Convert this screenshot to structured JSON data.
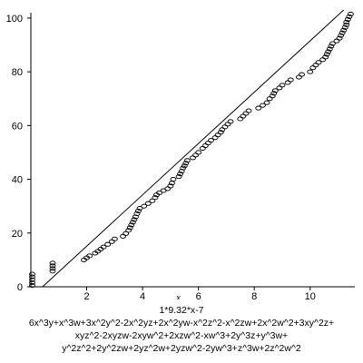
{
  "chart_data": {
    "type": "scatter",
    "title": "",
    "xlabel": "x",
    "ylabel": "",
    "xlim": [
      0,
      11.6
    ],
    "ylim": [
      0,
      102
    ],
    "grid": false,
    "x_ticks": [
      "2",
      "4",
      "6",
      "8",
      "10"
    ],
    "y_ticks": [
      "0",
      "20",
      "40",
      "60",
      "80",
      "100"
    ],
    "reference_line": {
      "x": [
        0,
        11.2
      ],
      "y": [
        -4,
        103
      ]
    },
    "series": [
      {
        "points": [
          [
            0.05,
            0.5
          ],
          [
            0.05,
            1.5
          ],
          [
            0.05,
            2.6
          ],
          [
            0.05,
            3.7
          ],
          [
            0.05,
            4.7
          ],
          [
            0.78,
            5.8
          ],
          [
            0.78,
            6.8
          ],
          [
            0.78,
            7.8
          ],
          [
            0.78,
            8.8
          ],
          [
            1.9,
            10.0
          ],
          [
            2.0,
            10.8
          ],
          [
            2.1,
            11.5
          ],
          [
            2.3,
            12.5
          ],
          [
            2.4,
            13.2
          ],
          [
            2.5,
            14.0
          ],
          [
            2.6,
            14.8
          ],
          [
            2.75,
            15.8
          ],
          [
            2.9,
            16.8
          ],
          [
            3.0,
            17.8
          ],
          [
            3.3,
            18.8
          ],
          [
            3.4,
            19.8
          ],
          [
            3.5,
            21.0
          ],
          [
            3.55,
            22.0
          ],
          [
            3.6,
            23.0
          ],
          [
            3.65,
            24.0
          ],
          [
            3.7,
            25.0
          ],
          [
            3.75,
            26.0
          ],
          [
            3.8,
            27.2
          ],
          [
            3.85,
            28.2
          ],
          [
            3.9,
            29.2
          ],
          [
            4.05,
            30.0
          ],
          [
            4.2,
            31.0
          ],
          [
            4.35,
            32.0
          ],
          [
            4.45,
            33.2
          ],
          [
            4.5,
            34.2
          ],
          [
            4.6,
            35.0
          ],
          [
            4.75,
            35.8
          ],
          [
            4.9,
            36.5
          ],
          [
            5.0,
            37.5
          ],
          [
            5.05,
            38.6
          ],
          [
            5.1,
            40.0
          ],
          [
            5.3,
            41.0
          ],
          [
            5.35,
            42.0
          ],
          [
            5.4,
            43.0
          ],
          [
            5.45,
            44.2
          ],
          [
            5.5,
            45.0
          ],
          [
            5.55,
            46.0
          ],
          [
            5.6,
            47.0
          ],
          [
            5.8,
            48.0
          ],
          [
            5.9,
            49.0
          ],
          [
            6.0,
            50.0
          ],
          [
            6.15,
            51.5
          ],
          [
            6.25,
            52.5
          ],
          [
            6.35,
            53.5
          ],
          [
            6.45,
            54.5
          ],
          [
            6.6,
            55.5
          ],
          [
            6.7,
            56.5
          ],
          [
            6.8,
            57.5
          ],
          [
            6.85,
            58.5
          ],
          [
            6.95,
            59.5
          ],
          [
            7.05,
            60.5
          ],
          [
            7.15,
            61.5
          ],
          [
            7.5,
            62.5
          ],
          [
            7.6,
            63.5
          ],
          [
            7.7,
            64.5
          ],
          [
            7.8,
            65.5
          ],
          [
            8.15,
            66.5
          ],
          [
            8.3,
            67.5
          ],
          [
            8.45,
            68.5
          ],
          [
            8.55,
            70.0
          ],
          [
            8.65,
            71.0
          ],
          [
            8.7,
            72.0
          ],
          [
            8.75,
            73.0
          ],
          [
            8.9,
            74.0
          ],
          [
            9.0,
            75.0
          ],
          [
            9.2,
            76.0
          ],
          [
            9.3,
            77.0
          ],
          [
            9.6,
            78.0
          ],
          [
            9.7,
            79.0
          ],
          [
            10.0,
            80.0
          ],
          [
            10.1,
            81.5
          ],
          [
            10.2,
            82.5
          ],
          [
            10.3,
            83.5
          ],
          [
            10.45,
            84.5
          ],
          [
            10.55,
            85.5
          ],
          [
            10.6,
            86.5
          ],
          [
            10.65,
            87.5
          ],
          [
            10.7,
            88.5
          ],
          [
            10.75,
            89.5
          ],
          [
            10.8,
            90.5
          ],
          [
            10.95,
            91.5
          ],
          [
            11.05,
            92.5
          ],
          [
            11.1,
            93.5
          ],
          [
            11.15,
            94.5
          ],
          [
            11.2,
            95.5
          ],
          [
            11.25,
            96.5
          ],
          [
            11.3,
            97.5
          ],
          [
            11.3,
            98.5
          ],
          [
            11.35,
            99.5
          ],
          [
            11.4,
            100.5
          ],
          [
            11.45,
            101.5
          ]
        ]
      }
    ]
  },
  "caption": {
    "line1": "1*9.32*x-7",
    "line2": "6x^3y+x^3w+3x^2y^2-2x^2yz+2x^2yw-x^2z^2-x^2zw+2x^2w^2+3xy^2z+",
    "line3": "xyz^2-2xyzw-2xyw^2+2xzw^2-xw^3+2y^3z+y^3w+",
    "line4": "y^2z^2+2y^2zw+2yz^2w+2yzw^2-2yw^3+z^3w+2z^2w^2"
  }
}
